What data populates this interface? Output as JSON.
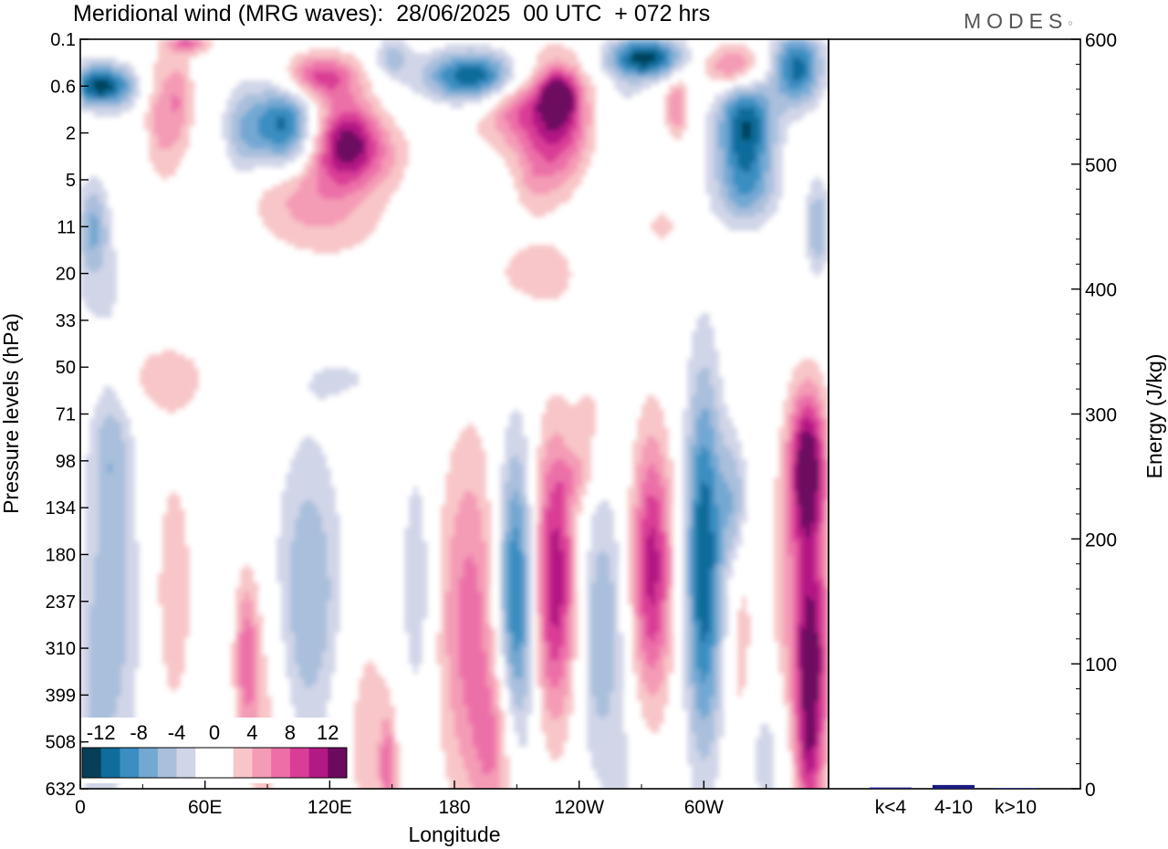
{
  "title": "Meridional wind (MRG waves):  28/06/2025  00 UTC  + 072 hrs",
  "logo": "MODES",
  "chart_data": [
    {
      "type": "heatmap",
      "title": "Meridional wind (MRG waves):  28/06/2025  00 UTC  + 072 hrs",
      "xlabel": "Longitude",
      "ylabel": "Pressure levels (hPa)",
      "x_ticks": [
        "0",
        "60E",
        "120E",
        "180",
        "120W",
        "60W"
      ],
      "x_tick_degrees": [
        0,
        60,
        120,
        180,
        240,
        300
      ],
      "x_range": [
        0,
        360
      ],
      "y_levels": [
        "0.1",
        "0.6",
        "2",
        "5",
        "11",
        "20",
        "33",
        "50",
        "71",
        "98",
        "134",
        "180",
        "237",
        "310",
        "399",
        "508",
        "632"
      ],
      "colorbar_labels": [
        "-12",
        "-8",
        "-4",
        "0",
        "4",
        "8",
        "12"
      ],
      "colorbar_colors": [
        "#063f57",
        "#0f6c9b",
        "#3a8ec1",
        "#73a8d3",
        "#a9bfdc",
        "#d1d5e8",
        "#ffffff",
        "#ffffff",
        "#f8c6c8",
        "#f49bb6",
        "#ec6fa8",
        "#da3d96",
        "#b31984",
        "#6c0a60"
      ],
      "features": [
        {
          "lon": 10,
          "lev": 0.6,
          "w": 16,
          "h": 0.45,
          "v": -13
        },
        {
          "lon": 52,
          "lev": 0.1,
          "w": 10,
          "h": 0.3,
          "v": 8
        },
        {
          "lon": 28,
          "lev": 1.9,
          "w": 10,
          "h": 1.1,
          "v": -3
        },
        {
          "lon": 38,
          "lev": 1.6,
          "w": 13,
          "h": 1.3,
          "v": 6
        },
        {
          "lon": 48,
          "lev": 0.8,
          "w": 6,
          "h": 0.8,
          "v": 3
        },
        {
          "lon": 98,
          "lev": 2.0,
          "w": 16,
          "h": 1.0,
          "v": -13
        },
        {
          "lon": 78,
          "lev": 2.3,
          "w": 10,
          "h": 1.1,
          "v": -5
        },
        {
          "lon": 115,
          "lev": 0.5,
          "w": 18,
          "h": 0.5,
          "v": 9
        },
        {
          "lon": 150,
          "lev": 0.3,
          "w": 8,
          "h": 0.45,
          "v": -5
        },
        {
          "lon": 128,
          "lev": 2.3,
          "w": 15,
          "h": 0.9,
          "v": 10
        },
        {
          "lon": 102,
          "lev": 4.5,
          "w": 26,
          "h": 1.0,
          "v": 6
        },
        {
          "lon": 140,
          "lev": 3.5,
          "w": 22,
          "h": 0.8,
          "v": 4
        },
        {
          "lon": 120,
          "lev": 10.5,
          "w": 30,
          "h": 0.9,
          "v": 3
        },
        {
          "lon": 170,
          "lev": 5.5,
          "w": 10,
          "h": 0.9,
          "v": -2
        },
        {
          "lon": 190,
          "lev": 0.5,
          "w": 24,
          "h": 0.55,
          "v": -13
        },
        {
          "lon": 215,
          "lev": 1.2,
          "w": 28,
          "h": 1.1,
          "v": 5
        },
        {
          "lon": 230,
          "lev": 1.8,
          "w": 14,
          "h": 1.3,
          "v": 8
        },
        {
          "lon": 230,
          "lev": 0.9,
          "w": 8,
          "h": 0.45,
          "v": 10
        },
        {
          "lon": 210,
          "lev": 1.2,
          "w": 12,
          "h": 0.7,
          "v": 3
        },
        {
          "lon": 218,
          "lev": 5.0,
          "w": 10,
          "h": 0.8,
          "v": 3
        },
        {
          "lon": 220,
          "lev": 20,
          "w": 24,
          "h": 0.85,
          "v": 3
        },
        {
          "lon": 272,
          "lev": 0.3,
          "w": 18,
          "h": 0.45,
          "v": -13
        },
        {
          "lon": 262,
          "lev": 1.0,
          "w": 10,
          "h": 0.8,
          "v": -2
        },
        {
          "lon": 287,
          "lev": 1.2,
          "w": 6,
          "h": 0.7,
          "v": 6
        },
        {
          "lon": 315,
          "lev": 0.4,
          "w": 15,
          "h": 0.5,
          "v": 8
        },
        {
          "lon": 320,
          "lev": 1.8,
          "w": 14,
          "h": 1.1,
          "v": -12
        },
        {
          "lon": 320,
          "lev": 6.5,
          "w": 15,
          "h": 0.8,
          "v": -6
        },
        {
          "lon": 345,
          "lev": 0.4,
          "w": 12,
          "h": 0.8,
          "v": -11
        },
        {
          "lon": 355,
          "lev": 11,
          "w": 6,
          "h": 1.0,
          "v": -6
        },
        {
          "lon": 6,
          "lev": 11,
          "w": 8,
          "h": 1.0,
          "v": -6
        },
        {
          "lon": 10,
          "lev": 25,
          "w": 18,
          "h": 1.3,
          "v": -2
        },
        {
          "lon": 280,
          "lev": 11,
          "w": 8,
          "h": 0.4,
          "v": 3
        },
        {
          "lon": 40,
          "lev": 55,
          "w": 28,
          "h": 0.9,
          "v": 3
        },
        {
          "lon": 130,
          "lev": 55,
          "w": 28,
          "h": 0.7,
          "v": -2
        },
        {
          "lon": 245,
          "lev": 75,
          "w": 7,
          "h": 0.9,
          "v": 3
        },
        {
          "lon": 15,
          "lev": 90,
          "w": 10,
          "h": 1.7,
          "v": -4
        },
        {
          "lon": 15,
          "lev": 260,
          "w": 14,
          "h": 3.6,
          "v": -5
        },
        {
          "lon": 5,
          "lev": 450,
          "w": 10,
          "h": 2.5,
          "v": -2
        },
        {
          "lon": 45,
          "lev": 225,
          "w": 9,
          "h": 2.6,
          "v": 4
        },
        {
          "lon": 65,
          "lev": 190,
          "w": 6,
          "h": 3.2,
          "v": -2
        },
        {
          "lon": 80,
          "lev": 330,
          "w": 6,
          "h": 1.8,
          "v": 7
        },
        {
          "lon": 90,
          "lev": 480,
          "w": 10,
          "h": 2.8,
          "v": 3
        },
        {
          "lon": 110,
          "lev": 230,
          "w": 16,
          "h": 3.2,
          "v": -6
        },
        {
          "lon": 138,
          "lev": 480,
          "w": 14,
          "h": 2.6,
          "v": 3
        },
        {
          "lon": 148,
          "lev": 580,
          "w": 4,
          "h": 1.1,
          "v": 6
        },
        {
          "lon": 162,
          "lev": 220,
          "w": 8,
          "h": 2.8,
          "v": -4
        },
        {
          "lon": 188,
          "lev": 270,
          "w": 16,
          "h": 3.8,
          "v": 7
        },
        {
          "lon": 200,
          "lev": 520,
          "w": 10,
          "h": 1.8,
          "v": 5
        },
        {
          "lon": 210,
          "lev": 230,
          "w": 10,
          "h": 3.2,
          "v": -12
        },
        {
          "lon": 228,
          "lev": 210,
          "w": 12,
          "h": 3.0,
          "v": 12
        },
        {
          "lon": 250,
          "lev": 280,
          "w": 12,
          "h": 3.0,
          "v": -6
        },
        {
          "lon": 262,
          "lev": 600,
          "w": 8,
          "h": 1.4,
          "v": -2
        },
        {
          "lon": 275,
          "lev": 195,
          "w": 10,
          "h": 2.8,
          "v": 11
        },
        {
          "lon": 300,
          "lev": 190,
          "w": 9,
          "h": 4.0,
          "v": -12
        },
        {
          "lon": 315,
          "lev": 130,
          "w": 7,
          "h": 1.5,
          "v": -6
        },
        {
          "lon": 318,
          "lev": 300,
          "w": 6,
          "h": 3.5,
          "v": 3
        },
        {
          "lon": 330,
          "lev": 540,
          "w": 12,
          "h": 1.6,
          "v": -3
        },
        {
          "lon": 350,
          "lev": 100,
          "w": 9,
          "h": 1.6,
          "v": 13
        },
        {
          "lon": 352,
          "lev": 340,
          "w": 9,
          "h": 2.7,
          "v": 11
        },
        {
          "lon": 345,
          "lev": 220,
          "w": 14,
          "h": 3.0,
          "v": 4
        },
        {
          "lon": 350,
          "lev": 560,
          "w": 6,
          "h": 1.5,
          "v": 5
        },
        {
          "lon": 240,
          "lev": 110,
          "w": 10,
          "h": 0.5,
          "v": 3
        }
      ]
    },
    {
      "type": "bar",
      "ylabel": "Energy (J/kg)",
      "ylim": [
        0,
        600
      ],
      "y_ticks": [
        0,
        100,
        200,
        300,
        400,
        500,
        600
      ],
      "categories": [
        "k<4",
        "4-10",
        "k>10"
      ],
      "values": [
        1,
        3,
        0.5
      ],
      "bar_color": "#1a1a80"
    }
  ]
}
